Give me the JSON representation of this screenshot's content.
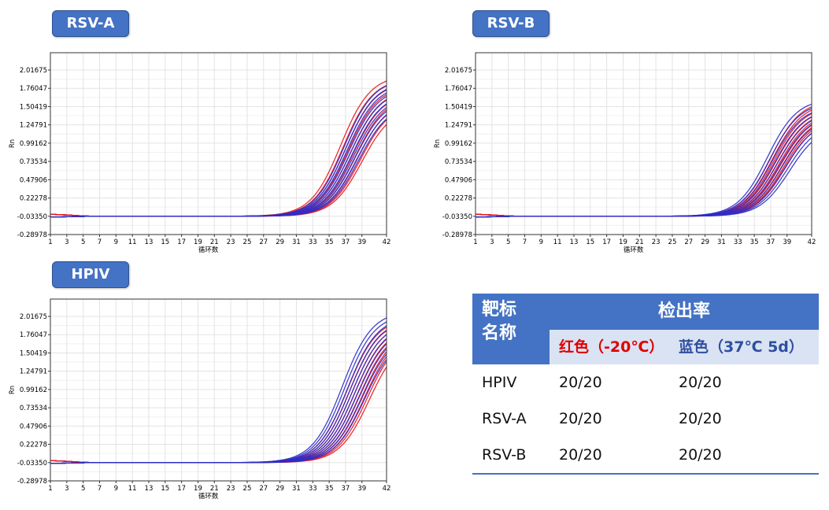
{
  "chart_titles": [
    "RSV-A",
    "RSV-B",
    "HPIV"
  ],
  "chart_data": [
    {
      "type": "line",
      "title": "RSV-A",
      "xlabel": "循环数",
      "ylabel": "Rn",
      "x_ticks": [
        1,
        3,
        5,
        7,
        9,
        11,
        13,
        15,
        17,
        19,
        21,
        23,
        25,
        27,
        29,
        31,
        33,
        35,
        37,
        39,
        42
      ],
      "y_ticks": [
        "2.01675",
        "1.76047",
        "1.50419",
        "1.24791",
        "0.99162",
        "0.73534",
        "0.47906",
        "0.22278",
        "-0.03350",
        "-0.28978"
      ],
      "xlim": [
        1,
        42
      ],
      "ylim": [
        -0.28978,
        2.2
      ],
      "grid": true,
      "series": [
        {
          "color": "#e8141c",
          "midpoints": [
            36.4,
            36.7,
            37.0,
            37.3,
            37.6,
            37.9,
            38.2,
            38.5,
            38.8,
            39.0
          ],
          "plateaus": [
            1.95,
            1.9,
            1.85,
            1.8,
            1.75,
            1.7,
            1.65,
            1.6,
            1.55,
            1.5
          ]
        },
        {
          "color": "#2c2cc8",
          "midpoints": [
            36.8,
            37.0,
            37.2,
            37.4,
            37.6,
            37.8,
            38.0,
            38.2,
            38.4,
            38.6
          ],
          "plateaus": [
            1.9,
            1.86,
            1.82,
            1.78,
            1.74,
            1.7,
            1.66,
            1.62,
            1.58,
            1.54
          ]
        }
      ]
    },
    {
      "type": "line",
      "title": "RSV-B",
      "xlabel": "循环数",
      "ylabel": "Rn",
      "x_ticks": [
        1,
        3,
        5,
        7,
        9,
        11,
        13,
        15,
        17,
        19,
        21,
        23,
        25,
        27,
        29,
        31,
        33,
        35,
        37,
        39,
        42
      ],
      "y_ticks": [
        "2.01675",
        "1.76047",
        "1.50419",
        "1.24791",
        "0.99162",
        "0.73534",
        "0.47906",
        "0.22278",
        "-0.03350",
        "-0.28978"
      ],
      "xlim": [
        1,
        42
      ],
      "ylim": [
        -0.28978,
        2.2
      ],
      "grid": true,
      "series": [
        {
          "color": "#e8141c",
          "midpoints": [
            37.0,
            37.2,
            37.4,
            37.6,
            37.8,
            38.0,
            38.2,
            38.4,
            38.6,
            38.8
          ],
          "plateaus": [
            1.6,
            1.56,
            1.52,
            1.48,
            1.45,
            1.42,
            1.4,
            1.38,
            1.35,
            1.33
          ]
        },
        {
          "color": "#2c2cc8",
          "midpoints": [
            36.6,
            36.9,
            37.2,
            37.5,
            37.8,
            38.1,
            38.4,
            38.7,
            39.0,
            39.3
          ],
          "plateaus": [
            1.62,
            1.57,
            1.52,
            1.48,
            1.44,
            1.4,
            1.36,
            1.32,
            1.28,
            1.24
          ]
        }
      ]
    },
    {
      "type": "line",
      "title": "HPIV",
      "xlabel": "循环数",
      "ylabel": "Rn",
      "x_ticks": [
        1,
        3,
        5,
        7,
        9,
        11,
        13,
        15,
        17,
        19,
        21,
        23,
        25,
        27,
        29,
        31,
        33,
        35,
        37,
        39,
        42
      ],
      "y_ticks": [
        "2.01675",
        "1.76047",
        "1.50419",
        "1.24791",
        "0.99162",
        "0.73534",
        "0.47906",
        "0.22278",
        "-0.03350",
        "-0.28978"
      ],
      "xlim": [
        1,
        42
      ],
      "ylim": [
        -0.28978,
        2.2
      ],
      "grid": true,
      "series": [
        {
          "color": "#e8141c",
          "midpoints": [
            37.2,
            37.5,
            37.8,
            38.1,
            38.4,
            38.7,
            39.0,
            39.3,
            39.6,
            39.9
          ],
          "plateaus": [
            2.0,
            1.97,
            1.94,
            1.91,
            1.88,
            1.85,
            1.82,
            1.79,
            1.76,
            1.73
          ]
        },
        {
          "color": "#2c2cc8",
          "midpoints": [
            36.6,
            36.9,
            37.2,
            37.5,
            37.8,
            38.1,
            38.4,
            38.7,
            39.0,
            39.3
          ],
          "plateaus": [
            2.1,
            2.06,
            2.02,
            1.98,
            1.94,
            1.9,
            1.86,
            1.82,
            1.78,
            1.74
          ]
        }
      ]
    }
  ],
  "table": {
    "col_target": "靶标名称",
    "col_rate": "检出率",
    "col_red": "红色（-20℃）",
    "col_blue": "蓝色（37℃ 5d）",
    "rows": [
      {
        "target": "HPIV",
        "red": "20/20",
        "blue": "20/20"
      },
      {
        "target": "RSV-A",
        "red": "20/20",
        "blue": "20/20"
      },
      {
        "target": "RSV-B",
        "red": "20/20",
        "blue": "20/20"
      }
    ]
  }
}
